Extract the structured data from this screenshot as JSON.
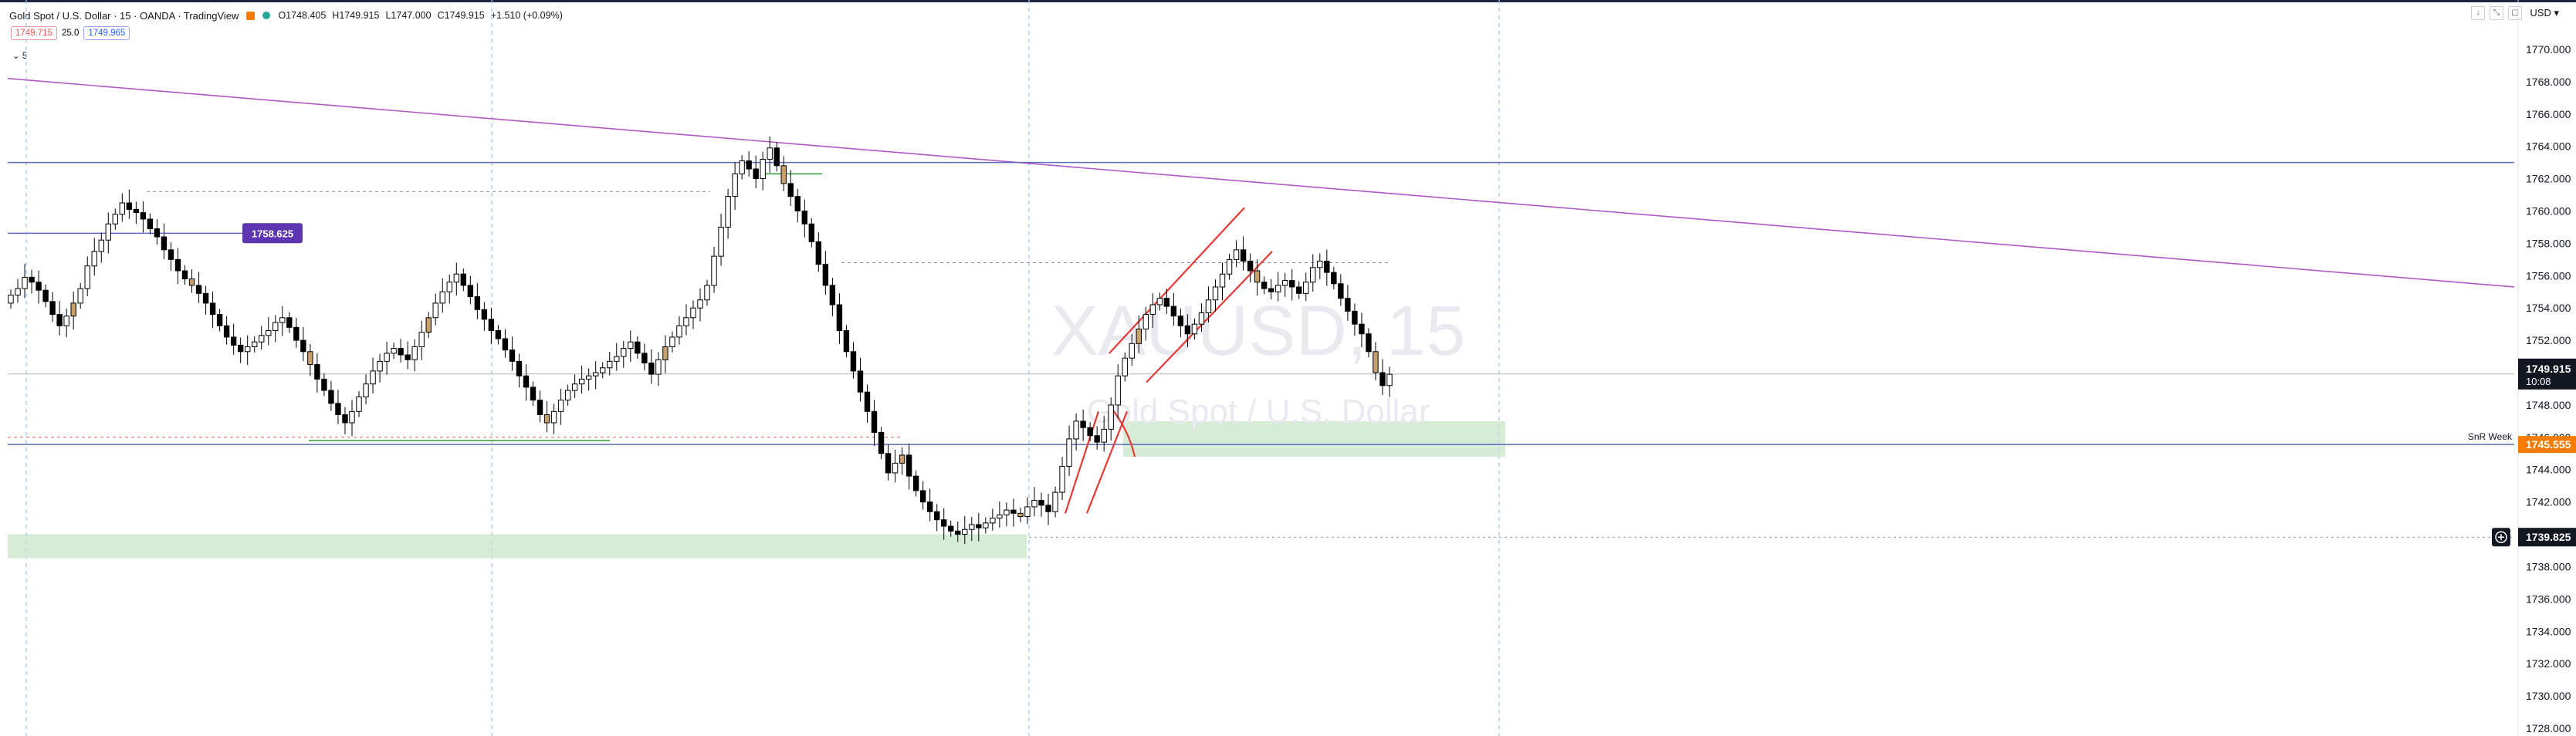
{
  "header": {
    "title": "Gold Spot / U.S. Dollar · 15 · OANDA · TradingView",
    "ohlc": {
      "o": "O1748.405",
      "h": "H1749.915",
      "l": "L1747.000",
      "c": "C1749.915",
      "change": "+1.510 (+0.09%)"
    }
  },
  "quote": {
    "bid": "1749.715",
    "spread": "25.0",
    "ask": "1749.965"
  },
  "interval_label": "5",
  "currency": "USD",
  "watermark": {
    "symbol": "XAUUSD, 15",
    "name": "Gold Spot / U.S. Dollar"
  },
  "colors": {
    "up": "#ffffff",
    "down": "#000000",
    "highlight_candle": "#c8a06e",
    "zone": "#c8e6c9",
    "trend": "#b158c4",
    "level": "#5c6bc0",
    "channel": "#e53935"
  },
  "chart_data": {
    "type": "candlestick",
    "ylim": [
      1728.0,
      1771.0
    ],
    "y_ticks": [
      "1770.000",
      "1768.000",
      "1766.000",
      "1764.000",
      "1762.000",
      "1760.000",
      "1758.000",
      "1756.000",
      "1754.000",
      "1752.000",
      "1750.000",
      "1748.000",
      "1746.000",
      "1744.000",
      "1742.000",
      "1740.000",
      "1738.000",
      "1736.000",
      "1734.000",
      "1732.000",
      "1730.000",
      "1728.000"
    ],
    "close_path": [
      1754.8,
      1755.2,
      1755.9,
      1755.6,
      1755.1,
      1754.4,
      1753.6,
      1752.9,
      1753.5,
      1754.3,
      1755.2,
      1756.6,
      1757.5,
      1758.2,
      1759.2,
      1759.8,
      1760.5,
      1760.1,
      1759.9,
      1759.5,
      1758.9,
      1758.4,
      1757.6,
      1757.0,
      1756.3,
      1755.8,
      1755.4,
      1754.9,
      1754.3,
      1753.6,
      1752.9,
      1752.2,
      1751.7,
      1751.3,
      1751.6,
      1751.9,
      1752.3,
      1752.6,
      1753.1,
      1753.4,
      1752.8,
      1752.0,
      1751.3,
      1750.5,
      1749.6,
      1748.9,
      1748.1,
      1747.4,
      1746.9,
      1747.6,
      1748.5,
      1749.3,
      1750.1,
      1750.7,
      1751.2,
      1751.5,
      1751.1,
      1750.8,
      1751.6,
      1752.5,
      1753.4,
      1754.3,
      1755.0,
      1755.6,
      1756.1,
      1755.4,
      1754.7,
      1753.9,
      1753.3,
      1752.6,
      1752.1,
      1751.4,
      1750.7,
      1749.8,
      1749.1,
      1748.3,
      1747.4,
      1746.9,
      1747.6,
      1748.3,
      1748.9,
      1749.3,
      1749.6,
      1749.8,
      1750.0,
      1750.3,
      1750.7,
      1751.0,
      1751.5,
      1751.9,
      1751.2,
      1750.6,
      1749.9,
      1750.8,
      1751.6,
      1752.2,
      1752.9,
      1753.4,
      1754.0,
      1754.5,
      1755.4,
      1757.2,
      1759.0,
      1760.9,
      1762.3,
      1763.1,
      1762.6,
      1762.0,
      1763.2,
      1763.9,
      1762.8,
      1761.7,
      1760.9,
      1760.0,
      1759.2,
      1758.1,
      1756.7,
      1755.4,
      1754.2,
      1752.6,
      1751.3,
      1750.1,
      1748.8,
      1747.6,
      1746.3,
      1745.0,
      1743.8,
      1744.4,
      1744.9,
      1743.6,
      1742.7,
      1742.0,
      1741.4,
      1740.9,
      1740.5,
      1740.2,
      1740.0,
      1740.3,
      1740.6,
      1740.4,
      1740.7,
      1741.0,
      1741.2,
      1741.5,
      1741.3,
      1741.1,
      1741.7,
      1742.1,
      1741.8,
      1741.4,
      1742.6,
      1744.2,
      1745.9,
      1747.0,
      1746.6,
      1746.1,
      1745.7,
      1746.5,
      1748.0,
      1749.8,
      1750.9,
      1751.8,
      1752.7,
      1753.6,
      1754.2,
      1754.6,
      1754.1,
      1753.5,
      1752.9,
      1752.4,
      1753.0,
      1753.7,
      1754.5,
      1755.3,
      1756.1,
      1757.0,
      1757.6,
      1756.9,
      1756.3,
      1755.6,
      1755.2,
      1755.0,
      1755.4,
      1755.7,
      1755.3,
      1754.9,
      1755.6,
      1756.5,
      1756.9,
      1756.2,
      1755.5,
      1754.6,
      1753.8,
      1753.0,
      1752.4,
      1751.3,
      1750.0,
      1749.2,
      1749.9
    ],
    "levels": [
      {
        "label": "1758.625",
        "price": 1758.625,
        "style": "solid-blue"
      },
      {
        "label": "1749.915",
        "sublabel": "10:08",
        "price": 1749.915,
        "style": "current"
      },
      {
        "label": "1745.555",
        "price": 1745.555,
        "style": "orange",
        "note": "SnR Week"
      },
      {
        "label": "1739.825",
        "price": 1739.825,
        "style": "dotted"
      }
    ],
    "resistance_line": 1763.0,
    "grid": false
  }
}
